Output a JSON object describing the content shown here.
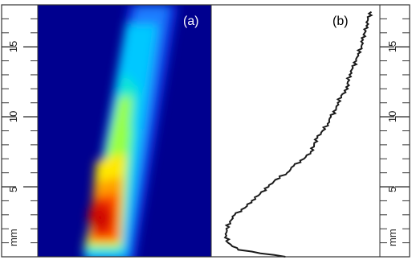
{
  "panels": {
    "a": {
      "label": "(a)"
    },
    "b": {
      "label": "(b)"
    }
  },
  "axis": {
    "unit": "mm",
    "range": [
      0,
      18
    ],
    "tick_labels": [
      "5",
      "10",
      "15"
    ],
    "major_ticks": [
      5,
      10,
      15
    ],
    "minor_step": 1
  },
  "colors": {
    "frame": "#333333",
    "background_blue": "#00008f",
    "profile_line": "#1a1a1a",
    "tag_a": "#ffffff",
    "tag_b": "#000000"
  },
  "chart_data": {
    "type": "line",
    "xlabel": "",
    "ylabel": "mm",
    "ylim": [
      0,
      18
    ],
    "series": [
      {
        "y": [
          0.0,
          0.5,
          1.0,
          1.5,
          2.0,
          2.5,
          3.0,
          3.5,
          4.0,
          4.5,
          5.0,
          5.5,
          6.0,
          6.5,
          7.0,
          7.5,
          8.0,
          8.5,
          9.0,
          9.5,
          10.0,
          10.5,
          11.0,
          11.5,
          12.0,
          12.5,
          13.0,
          13.5,
          14.0,
          14.5,
          15.0,
          15.5,
          16.0,
          16.5,
          17.0,
          17.5
        ],
        "intensity": [
          0.44,
          0.16,
          0.1,
          0.09,
          0.09,
          0.11,
          0.14,
          0.2,
          0.24,
          0.29,
          0.34,
          0.38,
          0.45,
          0.49,
          0.55,
          0.59,
          0.61,
          0.63,
          0.66,
          0.69,
          0.71,
          0.74,
          0.75,
          0.77,
          0.81,
          0.81,
          0.82,
          0.84,
          0.86,
          0.87,
          0.89,
          0.9,
          0.91,
          0.92,
          0.93,
          0.95
        ]
      }
    ]
  }
}
